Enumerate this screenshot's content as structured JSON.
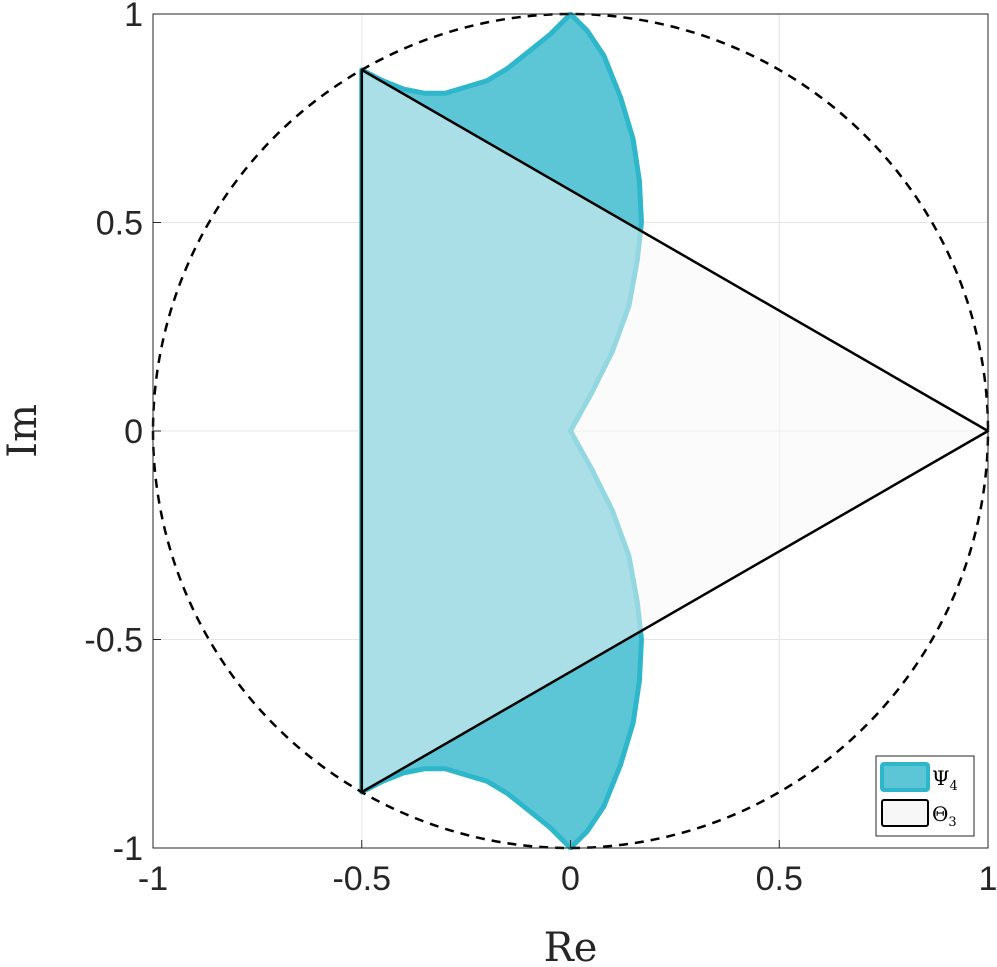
{
  "chart_data": {
    "type": "area",
    "xlabel": "Re",
    "ylabel": "Im",
    "xlim": [
      -1,
      1
    ],
    "ylim": [
      -1,
      1
    ],
    "xticks": [
      -1,
      -0.5,
      0,
      0.5,
      1
    ],
    "yticks": [
      -1,
      -0.5,
      0,
      0.5,
      1
    ],
    "xtick_labels": [
      "-1",
      "-0.5",
      "0",
      "0.5",
      "1"
    ],
    "ytick_labels": [
      "-1",
      "-0.5",
      "0",
      "0.5",
      "1"
    ],
    "grid": true,
    "legend_position": "bottom-right",
    "unit_circle": {
      "center": [
        0,
        0
      ],
      "radius": 1,
      "style": "dashed",
      "color": "#000000"
    },
    "series": [
      {
        "name": "Ψ4",
        "legend_main": "Ψ",
        "legend_sub": "4",
        "kind": "region",
        "fill_color": "#5CC6D6",
        "edge_color": "#2EB6CA",
        "fill_opacity": 1.0,
        "boundary_points": [
          [
            0,
            0
          ],
          [
            0.05,
            0.09
          ],
          [
            0.1,
            0.19
          ],
          [
            0.14,
            0.3
          ],
          [
            0.16,
            0.41
          ],
          [
            0.17,
            0.5
          ],
          [
            0.165,
            0.6
          ],
          [
            0.15,
            0.7
          ],
          [
            0.12,
            0.8
          ],
          [
            0.08,
            0.9
          ],
          [
            0.04,
            0.96
          ],
          [
            0,
            1
          ],
          [
            -0.05,
            0.95
          ],
          [
            -0.1,
            0.91
          ],
          [
            -0.15,
            0.87
          ],
          [
            -0.2,
            0.84
          ],
          [
            -0.25,
            0.825
          ],
          [
            -0.3,
            0.81
          ],
          [
            -0.35,
            0.81
          ],
          [
            -0.4,
            0.82
          ],
          [
            -0.45,
            0.84
          ],
          [
            -0.5,
            0.866
          ],
          [
            -0.5,
            -0.866
          ],
          [
            -0.45,
            -0.84
          ],
          [
            -0.4,
            -0.82
          ],
          [
            -0.35,
            -0.81
          ],
          [
            -0.3,
            -0.81
          ],
          [
            -0.25,
            -0.825
          ],
          [
            -0.2,
            -0.84
          ],
          [
            -0.15,
            -0.87
          ],
          [
            -0.1,
            -0.91
          ],
          [
            -0.05,
            -0.95
          ],
          [
            0,
            -1
          ],
          [
            0.04,
            -0.96
          ],
          [
            0.08,
            -0.9
          ],
          [
            0.12,
            -0.8
          ],
          [
            0.15,
            -0.7
          ],
          [
            0.165,
            -0.6
          ],
          [
            0.17,
            -0.5
          ],
          [
            0.16,
            -0.41
          ],
          [
            0.14,
            -0.3
          ],
          [
            0.1,
            -0.19
          ],
          [
            0.05,
            -0.09
          ],
          [
            0,
            0
          ]
        ]
      },
      {
        "name": "Θ3",
        "legend_main": "Θ",
        "legend_sub": "3",
        "kind": "polygon",
        "fill_color": "#F7F7F7",
        "edge_color": "#000000",
        "fill_opacity": 0.5,
        "vertices": [
          [
            1,
            0
          ],
          [
            -0.5,
            0.866
          ],
          [
            -0.5,
            -0.866
          ]
        ]
      }
    ]
  }
}
